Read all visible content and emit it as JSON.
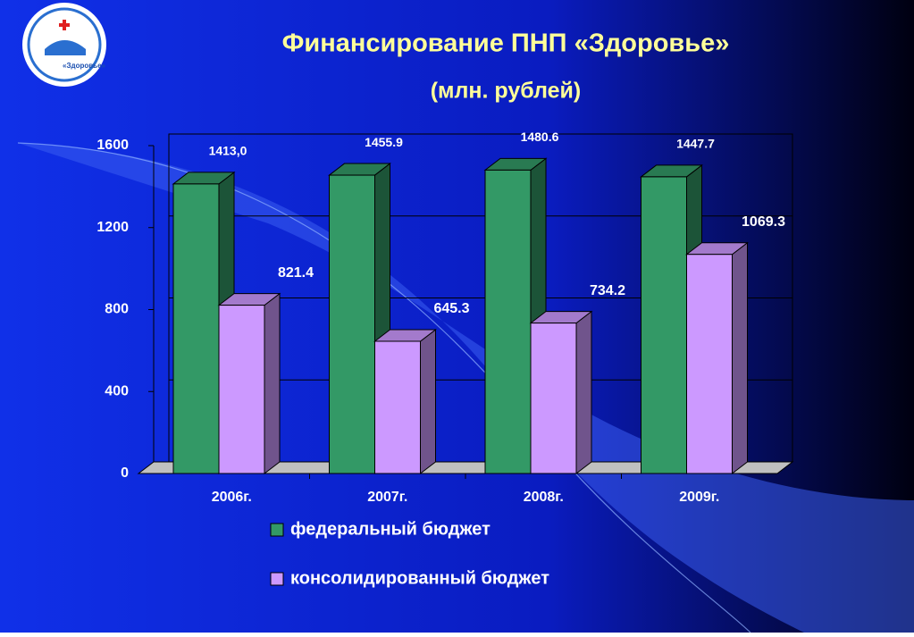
{
  "chart_data": {
    "type": "bar3d",
    "title": "Финансирование ПНП «Здоровье»",
    "subtitle": "(млн. рублей)",
    "logo_text": "«Здоровье»",
    "categories": [
      "2006г.",
      "2007г.",
      "2008г.",
      "2009г."
    ],
    "series": [
      {
        "name": "федеральный бюджет",
        "color": "#339966",
        "values": [
          1413.0,
          1455.9,
          1480.6,
          1447.7
        ],
        "value_labels": [
          "1413,0",
          "1455.9",
          "1480.6",
          "1447.7"
        ]
      },
      {
        "name": "консолидированный бюджет",
        "color": "#cc99ff",
        "values": [
          821.4,
          645.3,
          734.2,
          1069.3
        ]
      }
    ],
    "ylim": [
      0,
      1600
    ],
    "yticks": [
      0,
      400,
      800,
      1200,
      1600
    ],
    "grid": true
  }
}
